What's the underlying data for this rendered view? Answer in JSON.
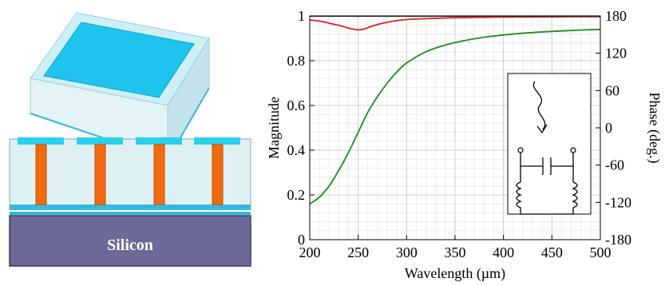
{
  "illustration": {
    "substrate_label": "Silicon",
    "colors": {
      "pad": "#2ad0ec",
      "pad_top": "#1ec4ee",
      "dielectric": "#dff0f3",
      "pillar": "#f26a10",
      "pillar_edge": "#c84e00",
      "substrate": "#6c6a96",
      "ground_plane": "#35b8e0"
    }
  },
  "chart_data": {
    "type": "line",
    "title": "",
    "xlabel": "Wavelength (µm)",
    "ylabel": "Magnitude",
    "y2label": "Phase (deg.)",
    "xlim": [
      200,
      500
    ],
    "ylim": [
      0,
      1
    ],
    "y2lim": [
      -180,
      180
    ],
    "xticks": [
      200,
      250,
      300,
      350,
      400,
      450,
      500
    ],
    "yticks": [
      0,
      0.2,
      0.4,
      0.6,
      0.8,
      1
    ],
    "y2ticks": [
      -180,
      -120,
      -60,
      0,
      60,
      120,
      180
    ],
    "grid": true,
    "inset": "circuit-diagram",
    "series": [
      {
        "axis": "left",
        "color": "#e02020",
        "x": [
          200,
          210,
          220,
          230,
          240,
          245,
          250,
          255,
          260,
          270,
          280,
          290,
          300,
          320,
          340,
          360,
          380,
          400,
          450,
          500
        ],
        "y": [
          0.982,
          0.977,
          0.968,
          0.958,
          0.946,
          0.941,
          0.938,
          0.94,
          0.948,
          0.962,
          0.972,
          0.979,
          0.984,
          0.988,
          0.991,
          0.993,
          0.994,
          0.995,
          0.996,
          0.997
        ]
      },
      {
        "axis": "left",
        "color": "#1e8c1e",
        "x": [
          200,
          210,
          220,
          230,
          240,
          250,
          260,
          270,
          280,
          290,
          300,
          320,
          340,
          360,
          380,
          400,
          420,
          450,
          480,
          500
        ],
        "y": [
          0.16,
          0.19,
          0.24,
          0.31,
          0.39,
          0.48,
          0.57,
          0.64,
          0.7,
          0.75,
          0.79,
          0.84,
          0.87,
          0.89,
          0.905,
          0.915,
          0.923,
          0.931,
          0.937,
          0.94
        ]
      },
      {
        "axis": "left",
        "color": "#555555",
        "x": [
          200,
          500
        ],
        "y": [
          0.999,
          0.999
        ]
      }
    ]
  }
}
